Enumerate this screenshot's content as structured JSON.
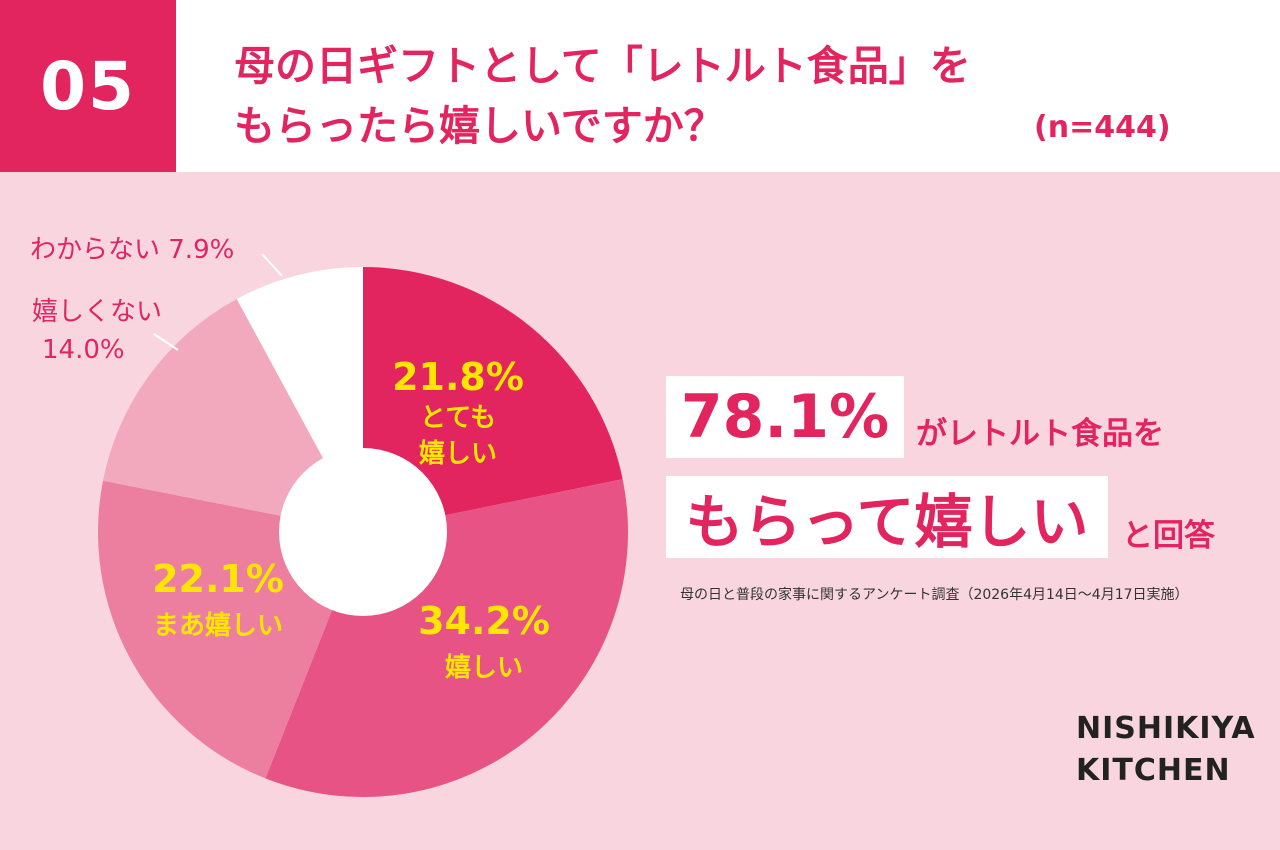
{
  "header": {
    "number": "05",
    "question_line1": "母の日ギフトとして「レトルト食品」を",
    "question_line2": "もらったら嬉しいですか？",
    "sample": "(n=444)"
  },
  "chart_data": {
    "type": "pie",
    "donut": true,
    "start": "top",
    "direction": "clockwise",
    "slices": [
      {
        "label_lines": [
          "とても",
          "嬉しい"
        ],
        "value": 21.8,
        "value_text": "21.8%",
        "color": "#e2245f"
      },
      {
        "label_lines": [
          "嬉しい"
        ],
        "value": 34.2,
        "value_text": "34.2%",
        "color": "#e65384"
      },
      {
        "label_lines": [
          "まあ嬉しい"
        ],
        "value": 22.1,
        "value_text": "22.1%",
        "color": "#ec7fa0"
      },
      {
        "label_lines": [
          "嬉しくない"
        ],
        "value": 14.0,
        "value_text": "14.0%",
        "color": "#f2a8bd",
        "outside_text": [
          "嬉しくない",
          "14.0%"
        ]
      },
      {
        "label_lines": [
          "わからない"
        ],
        "value": 7.9,
        "value_text": "7.9%",
        "color": "#ffffff",
        "outside_text": [
          "わからない 7.9%"
        ]
      }
    ]
  },
  "callout": {
    "percent": "78.1%",
    "text1": "がレトルト食品を",
    "big_text": "もらって嬉しい",
    "text2": "と回答"
  },
  "source": "母の日と普段の家事に関するアンケート調査（2026年4月14日〜4月17日実施）",
  "brand": {
    "line1": "NISHIKIYA",
    "line2": "KITCHEN"
  },
  "colors": {
    "accent": "#e2245f",
    "background": "#f9d6df",
    "slice_label": "#ffe600"
  }
}
